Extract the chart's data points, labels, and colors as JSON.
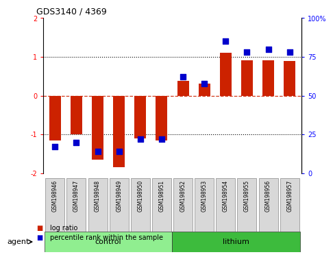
{
  "title": "GDS3140 / 4369",
  "samples": [
    "GSM198946",
    "GSM198947",
    "GSM198948",
    "GSM198949",
    "GSM198950",
    "GSM198951",
    "GSM198952",
    "GSM198953",
    "GSM198954",
    "GSM198955",
    "GSM198956",
    "GSM198957"
  ],
  "log_ratio": [
    -1.15,
    -1.0,
    -1.65,
    -1.85,
    -1.1,
    -1.15,
    0.38,
    0.32,
    1.1,
    0.92,
    0.92,
    0.9
  ],
  "percentile": [
    17,
    20,
    14,
    14,
    22,
    22,
    62,
    58,
    85,
    78,
    80,
    78
  ],
  "groups": [
    {
      "label": "control",
      "start": 0,
      "end": 6,
      "color": "#90ee90"
    },
    {
      "label": "lithium",
      "start": 6,
      "end": 12,
      "color": "#3dbb3d"
    }
  ],
  "bar_color": "#cc2200",
  "dot_color": "#0000cc",
  "ylim": [
    -2,
    2
  ],
  "y2lim": [
    0,
    100
  ],
  "yticks": [
    -2,
    -1,
    0,
    1,
    2
  ],
  "y2ticks": [
    0,
    25,
    50,
    75,
    100
  ],
  "hlines_dotted": [
    -1,
    1
  ],
  "hline_dashed": 0,
  "bg_color": "#ffffff",
  "sample_box_color": "#d8d8d8",
  "agent_label": "agent",
  "legend": [
    {
      "label": "log ratio",
      "color": "#cc2200"
    },
    {
      "label": "percentile rank within the sample",
      "color": "#0000cc"
    }
  ]
}
